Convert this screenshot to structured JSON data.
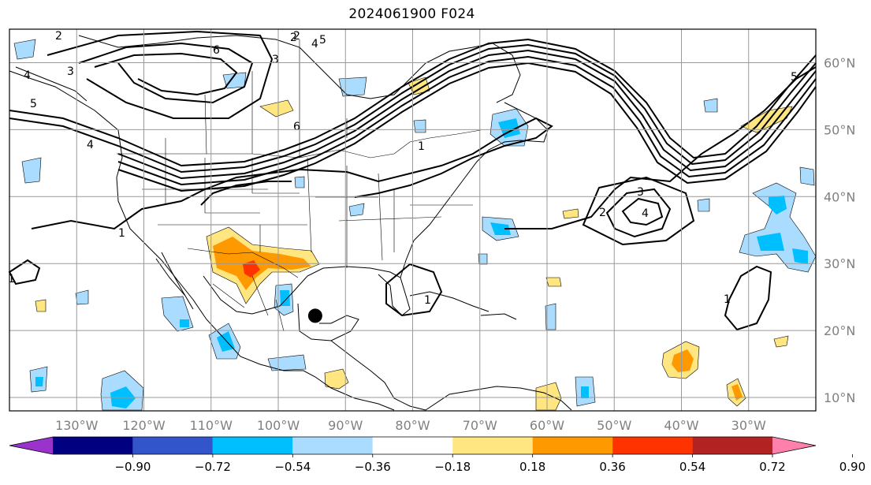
{
  "title": "2024061900 F024",
  "map": {
    "projection": "PlateCarree",
    "lon_range": [
      -140,
      -20
    ],
    "lat_range": [
      8,
      65
    ],
    "lon_labels": [
      "130°W",
      "120°W",
      "110°W",
      "100°W",
      "90°W",
      "80°W",
      "70°W",
      "60°W",
      "50°W",
      "40°W",
      "30°W"
    ],
    "lon_values": [
      -130,
      -120,
      -110,
      -100,
      -90,
      -80,
      -70,
      -60,
      -50,
      -40,
      -30
    ],
    "lat_labels": [
      "60°N",
      "50°N",
      "40°N",
      "30°N",
      "20°N",
      "10°N"
    ],
    "lat_values": [
      60,
      50,
      40,
      30,
      20,
      10
    ],
    "gridlines": true,
    "gridline_color": "#999999",
    "axis_label_color": "#808080",
    "storm_marker": {
      "lon": -94.5,
      "lat": 22.2,
      "symbol": "filled-circle",
      "color": "#000000"
    }
  },
  "contour_labels": [
    "5",
    "5",
    "4",
    "3",
    "2",
    "2",
    "3",
    "4",
    "4",
    "1",
    "1",
    "1",
    "1",
    "1",
    "2",
    "3",
    "4",
    "5",
    "6",
    "6",
    "2"
  ],
  "colorbar": {
    "orientation": "horizontal",
    "extend": "both",
    "ticks": [
      "−0.90",
      "−0.72",
      "−0.54",
      "−0.36",
      "−0.18",
      "0.18",
      "0.36",
      "0.54",
      "0.72",
      "0.90"
    ],
    "colors": [
      "#9933cc",
      "#000080",
      "#3355cc",
      "#00bfff",
      "#aadcff",
      "#ffffff",
      "#ffe680",
      "#ff9900",
      "#ff3300",
      "#b22222",
      "#ff80aa"
    ]
  }
}
